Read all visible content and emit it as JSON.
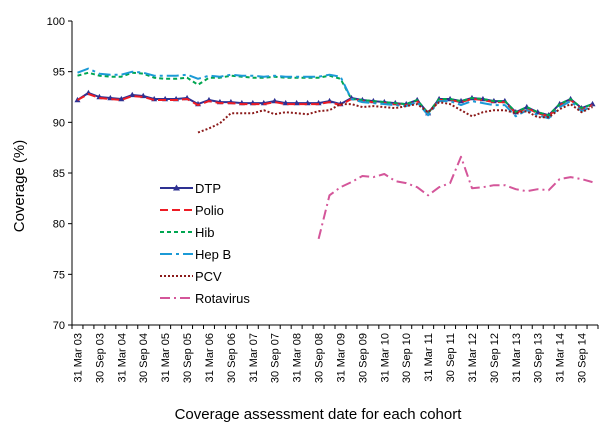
{
  "chart_data": {
    "type": "line",
    "title": "",
    "xlabel": "Coverage assessment date for each cohort",
    "ylabel": "Coverage (%)",
    "ylim": [
      70,
      100
    ],
    "yticks": [
      70,
      75,
      80,
      85,
      90,
      95,
      100
    ],
    "grid": false,
    "legend_position": "left-center",
    "x_tick_labels": [
      "31 Mar 03",
      "30 Sep 03",
      "31 Mar 04",
      "30 Sep 04",
      "31 Mar 05",
      "30 Sep 05",
      "31 Mar 06",
      "30 Sep 06",
      "31 Mar 07",
      "30 Sep 07",
      "31 Mar 08",
      "30 Sep 08",
      "31 Mar 09",
      "30 Sep 09",
      "31 Mar 10",
      "30 Sep 10",
      "31 Mar 11",
      "30 Sep 11",
      "31 Mar 12",
      "30 Sep 12",
      "31 Mar 13",
      "30 Sep 13",
      "31 Mar 14",
      "30 Sep 14"
    ],
    "quarters": [
      "31 Mar 03",
      "30 Jun 03",
      "30 Sep 03",
      "31 Dec 03",
      "31 Mar 04",
      "30 Jun 04",
      "30 Sep 04",
      "31 Dec 04",
      "31 Mar 05",
      "30 Jun 05",
      "30 Sep 05",
      "31 Dec 05",
      "31 Mar 06",
      "30 Jun 06",
      "30 Sep 06",
      "31 Dec 06",
      "31 Mar 07",
      "30 Jun 07",
      "30 Sep 07",
      "31 Dec 07",
      "31 Mar 08",
      "30 Jun 08",
      "30 Sep 08",
      "31 Dec 08",
      "31 Mar 09",
      "30 Jun 09",
      "30 Sep 09",
      "31 Dec 09",
      "31 Mar 10",
      "30 Jun 10",
      "30 Sep 10",
      "31 Dec 10",
      "31 Mar 11",
      "30 Jun 11",
      "30 Sep 11",
      "31 Dec 11",
      "31 Mar 12",
      "30 Jun 12",
      "30 Sep 12",
      "31 Dec 12",
      "31 Mar 13",
      "30 Jun 13",
      "30 Sep 13",
      "31 Dec 13",
      "31 Mar 14",
      "30 Jun 14",
      "30 Sep 14",
      "31 Dec 14"
    ],
    "series": [
      {
        "name": "DTP",
        "color": "#2e3192",
        "dash": "",
        "marker": "triangle",
        "values": [
          92.2,
          92.9,
          92.5,
          92.4,
          92.3,
          92.7,
          92.6,
          92.3,
          92.3,
          92.3,
          92.4,
          91.8,
          92.2,
          92.0,
          92.0,
          91.9,
          91.9,
          91.9,
          92.1,
          91.9,
          91.9,
          91.9,
          91.9,
          92.1,
          91.8,
          92.4,
          92.2,
          92.1,
          92.0,
          91.9,
          91.8,
          92.2,
          90.9,
          92.3,
          92.3,
          92.1,
          92.4,
          92.3,
          92.1,
          92.1,
          91.0,
          91.5,
          91.0,
          90.7,
          91.8,
          92.3,
          91.4,
          91.8
        ]
      },
      {
        "name": "Polio",
        "color": "#ed1c24",
        "dash": "8,4",
        "marker": "",
        "values": [
          92.2,
          92.8,
          92.4,
          92.3,
          92.2,
          92.6,
          92.5,
          92.2,
          92.2,
          92.2,
          92.3,
          91.7,
          92.1,
          91.9,
          91.9,
          91.8,
          91.8,
          91.8,
          92.0,
          91.8,
          91.8,
          91.8,
          91.8,
          92.0,
          91.7,
          92.3,
          92.1,
          92.0,
          91.9,
          91.8,
          91.7,
          92.1,
          90.8,
          92.2,
          92.2,
          92.0,
          92.3,
          92.2,
          92.0,
          92.0,
          90.9,
          91.4,
          90.9,
          90.6,
          91.7,
          92.2,
          91.3,
          91.7
        ]
      },
      {
        "name": "Hib",
        "color": "#00a651",
        "dash": "4,3",
        "marker": "",
        "values": [
          94.6,
          94.9,
          94.6,
          94.5,
          94.5,
          94.9,
          94.8,
          94.4,
          94.3,
          94.3,
          94.4,
          93.7,
          94.4,
          94.4,
          94.6,
          94.5,
          94.4,
          94.4,
          94.5,
          94.4,
          94.4,
          94.4,
          94.4,
          94.6,
          94.3,
          92.3,
          92.2,
          92.1,
          92.0,
          91.9,
          91.8,
          92.2,
          90.9,
          92.3,
          92.3,
          92.1,
          92.4,
          92.3,
          92.1,
          92.1,
          91.0,
          91.5,
          91.0,
          90.7,
          91.8,
          92.3,
          91.4,
          91.8
        ]
      },
      {
        "name": "Hep B",
        "color": "#1b9ad6",
        "dash": "12,4,3,4",
        "marker": "",
        "values": [
          94.9,
          95.3,
          94.8,
          94.7,
          94.7,
          95.0,
          94.9,
          94.6,
          94.6,
          94.6,
          94.7,
          94.3,
          94.6,
          94.5,
          94.7,
          94.6,
          94.6,
          94.5,
          94.6,
          94.5,
          94.5,
          94.5,
          94.5,
          94.7,
          94.5,
          92.3,
          92.0,
          91.9,
          91.8,
          91.7,
          91.6,
          92.0,
          90.7,
          92.1,
          92.1,
          91.7,
          92.1,
          91.9,
          91.7,
          91.7,
          90.6,
          91.2,
          90.7,
          90.4,
          91.5,
          92.1,
          91.1,
          91.6
        ]
      },
      {
        "name": "PCV",
        "color": "#8b1a1a",
        "dash": "2,2",
        "marker": "",
        "values": [
          null,
          null,
          null,
          null,
          null,
          null,
          null,
          null,
          null,
          null,
          null,
          89.0,
          89.4,
          89.9,
          90.9,
          90.9,
          90.9,
          91.2,
          90.8,
          91.0,
          90.9,
          90.8,
          91.1,
          91.2,
          91.8,
          91.8,
          91.5,
          91.6,
          91.5,
          91.4,
          91.6,
          91.8,
          91.0,
          92.0,
          91.8,
          91.2,
          90.6,
          91.0,
          91.2,
          91.2,
          90.9,
          91.1,
          90.5,
          90.5,
          91.3,
          91.8,
          91.0,
          91.5
        ]
      },
      {
        "name": "Rotavirus",
        "color": "#d4569a",
        "dash": "10,4,2,4",
        "marker": "",
        "values": [
          null,
          null,
          null,
          null,
          null,
          null,
          null,
          null,
          null,
          null,
          null,
          null,
          null,
          null,
          null,
          null,
          null,
          null,
          null,
          null,
          null,
          null,
          78.5,
          82.8,
          83.6,
          84.1,
          84.7,
          84.6,
          84.9,
          84.2,
          84.0,
          83.6,
          82.8,
          83.6,
          84.0,
          86.6,
          83.5,
          83.6,
          83.8,
          83.8,
          83.4,
          83.2,
          83.4,
          83.3,
          84.4,
          84.6,
          84.4,
          84.1
        ]
      }
    ]
  }
}
